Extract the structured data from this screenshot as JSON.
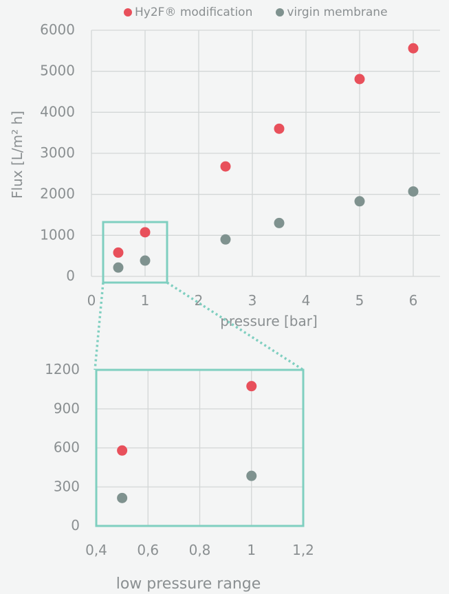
{
  "chart_data": [
    {
      "type": "scatter",
      "xlabel": "pressure [bar]",
      "ylabel": "Flux [L/m² h]",
      "xlim": [
        0,
        6.5
      ],
      "ylim": [
        0,
        6000
      ],
      "xticks": [
        0,
        1,
        2,
        3,
        4,
        5,
        6
      ],
      "yticks": [
        0,
        1000,
        2000,
        3000,
        4000,
        5000,
        6000
      ],
      "x_tick_labels": [
        "0",
        "1",
        "2",
        "3",
        "4",
        "5",
        "6"
      ],
      "y_tick_labels": [
        "0",
        "1000",
        "2000",
        "3000",
        "4000",
        "5000",
        "6000"
      ],
      "grid": true,
      "legend_position": "top",
      "series": [
        {
          "name": "Hy2F® modification",
          "color": "#e8505b",
          "x": [
            0.5,
            1,
            2.5,
            3.5,
            5,
            6
          ],
          "y": [
            580,
            1075,
            2680,
            3600,
            4810,
            5560
          ]
        },
        {
          "name": "virgin membrane",
          "color": "#7f928f",
          "x": [
            0.5,
            1,
            2.5,
            3.5,
            5,
            6
          ],
          "y": [
            215,
            385,
            900,
            1300,
            1830,
            2070
          ]
        }
      ]
    },
    {
      "type": "scatter",
      "xlabel": "low pressure range",
      "ylabel": "",
      "xlim": [
        0.4,
        1.2
      ],
      "ylim": [
        0,
        1200
      ],
      "xticks": [
        0.4,
        0.6,
        0.8,
        1.0,
        1.2
      ],
      "yticks": [
        0,
        300,
        600,
        900,
        1200
      ],
      "x_tick_labels": [
        "0,4",
        "0,6",
        "0,8",
        "1",
        "1,2"
      ],
      "y_tick_labels": [
        "0",
        "300",
        "600",
        "900",
        "1200"
      ],
      "grid": true,
      "series": [
        {
          "name": "Hy2F® modification",
          "color": "#e8505b",
          "x": [
            0.5,
            1
          ],
          "y": [
            580,
            1075
          ]
        },
        {
          "name": "virgin membrane",
          "color": "#7f928f",
          "x": [
            0.5,
            1
          ],
          "y": [
            215,
            385
          ]
        }
      ]
    }
  ],
  "colors": {
    "zoom_box": "#7fcfc0",
    "grid": "#d3d6d6",
    "axis_text": "#8a8f91"
  }
}
